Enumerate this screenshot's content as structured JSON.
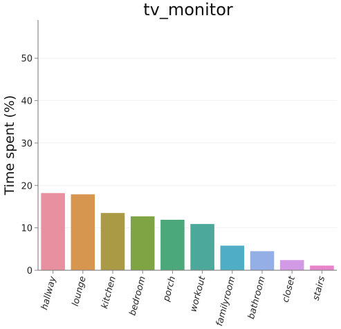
{
  "chart_data": {
    "type": "bar",
    "title": "tv_monitor",
    "xlabel": "",
    "ylabel": "Time spent (%)",
    "categories": [
      "hallway",
      "lounge",
      "kitchen",
      "bedroom",
      "porch",
      "workout",
      "familyroom",
      "bathroom",
      "closet",
      "stairs"
    ],
    "values": [
      18.2,
      17.9,
      13.5,
      12.7,
      11.9,
      10.9,
      5.8,
      4.5,
      2.4,
      1.1
    ],
    "colors": [
      "#e8909f",
      "#d79650",
      "#ab9a45",
      "#7ea444",
      "#4aa87a",
      "#4ba89b",
      "#4fadc5",
      "#94aee6",
      "#d29ae4",
      "#e884cc"
    ],
    "ylim": [
      0,
      59
    ],
    "yticks": [
      0,
      10,
      20,
      30,
      40,
      50
    ],
    "grid": true,
    "legend": "none"
  }
}
